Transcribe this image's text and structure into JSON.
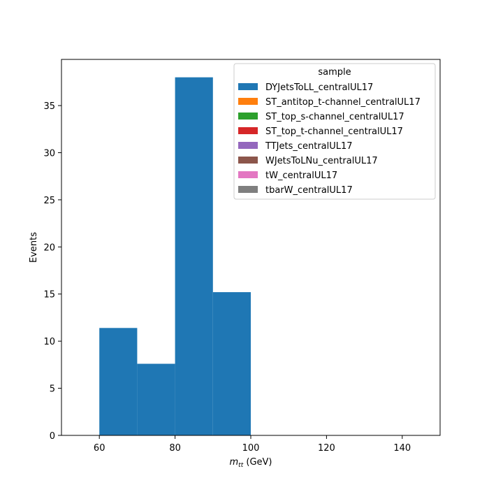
{
  "chart_data": {
    "type": "bar",
    "subtype": "stacked-histogram",
    "title": "",
    "xlabel": "m_tt (GeV)",
    "xlabel_parts": {
      "var": "m",
      "sub": "tt",
      "unit": " (GeV)"
    },
    "ylabel": "Events",
    "xlim": [
      50,
      150
    ],
    "ylim": [
      0,
      39.9
    ],
    "xticks": [
      60,
      80,
      100,
      120,
      140
    ],
    "yticks": [
      0,
      5,
      10,
      15,
      20,
      25,
      30,
      35
    ],
    "grid": false,
    "legend_position": "top-right",
    "legend_title": "sample",
    "bin_edges": [
      60,
      70,
      80,
      90,
      100
    ],
    "series": [
      {
        "name": "DYJetsToLL_centralUL17",
        "color": "#1f77b4",
        "values": [
          11.4,
          7.6,
          38.0,
          15.2
        ]
      },
      {
        "name": "ST_antitop_t-channel_centralUL17",
        "color": "#ff7f0e",
        "values": [
          0,
          0,
          0,
          0
        ]
      },
      {
        "name": "ST_top_s-channel_centralUL17",
        "color": "#2ca02c",
        "values": [
          0,
          0,
          0,
          0
        ]
      },
      {
        "name": "ST_top_t-channel_centralUL17",
        "color": "#d62728",
        "values": [
          0,
          0,
          0,
          0
        ]
      },
      {
        "name": "TTJets_centralUL17",
        "color": "#9467bd",
        "values": [
          0,
          0,
          0,
          0
        ]
      },
      {
        "name": "WJetsToLNu_centralUL17",
        "color": "#8c564b",
        "values": [
          0,
          0,
          0,
          0
        ]
      },
      {
        "name": "tW_centralUL17",
        "color": "#e377c2",
        "values": [
          0,
          0,
          0,
          0
        ]
      },
      {
        "name": "tbarW_centralUL17",
        "color": "#7f7f7f",
        "values": [
          0,
          0,
          0,
          0
        ]
      }
    ]
  }
}
